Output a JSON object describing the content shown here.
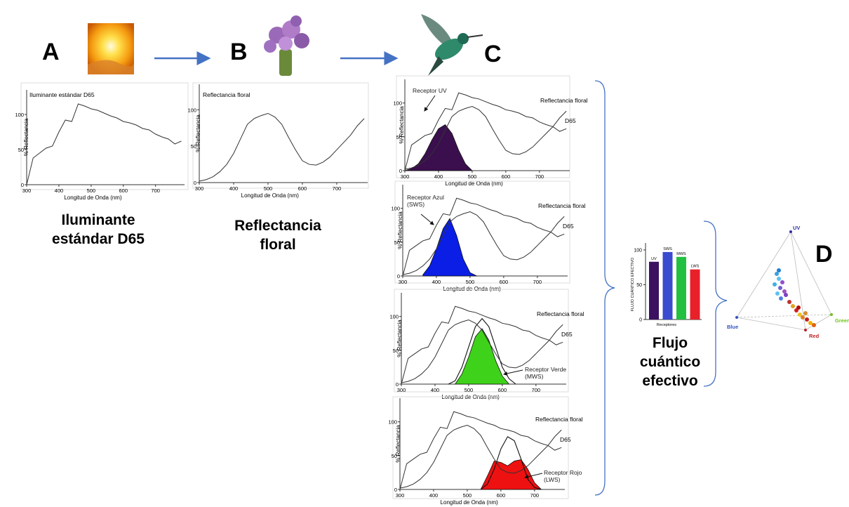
{
  "panel_letters": [
    "A",
    "B",
    "C",
    "D"
  ],
  "spectra": {
    "x": [
      300,
      320,
      340,
      360,
      380,
      400,
      420,
      440,
      460,
      480,
      500,
      520,
      540,
      560,
      580,
      600,
      620,
      640,
      660,
      680,
      700,
      720,
      740,
      760,
      780
    ],
    "d65": [
      0,
      38,
      45,
      52,
      55,
      75,
      92,
      90,
      115,
      112,
      108,
      106,
      102,
      98,
      95,
      90,
      88,
      85,
      80,
      78,
      72,
      68,
      65,
      58,
      62
    ],
    "floral": [
      2,
      4,
      8,
      15,
      25,
      40,
      60,
      80,
      88,
      92,
      95,
      90,
      80,
      62,
      45,
      30,
      25,
      24,
      28,
      35,
      45,
      55,
      65,
      78,
      88
    ],
    "xlim": [
      300,
      790
    ],
    "ylim": [
      0,
      135
    ],
    "xticks": [
      300,
      400,
      500,
      600,
      700
    ],
    "yticks": [
      0,
      50,
      100
    ],
    "x_label": "Longitud de Onda (nm)",
    "y_label": "% Reflectancia"
  },
  "illuminant_chart": {
    "title": "Iluminante estándar D65",
    "caption": "Iluminante estándar D65"
  },
  "floral_chart": {
    "title": "Reflectancia floral",
    "caption": "Reflectancia floral"
  },
  "floral_label": "Reflectancia floral",
  "d65_label": "D65",
  "receptor_charts": [
    {
      "receptor_label": "Receptor UV",
      "color": "#3b0f4e",
      "sensitivity": [
        0,
        3,
        10,
        25,
        45,
        62,
        68,
        55,
        30,
        10,
        0,
        null,
        null,
        null,
        null,
        null,
        null,
        null,
        null,
        null,
        null,
        null,
        null,
        null,
        null
      ]
    },
    {
      "receptor_label": "Receptor Azul (SWS)",
      "color": "#0a1ee6",
      "sensitivity": [
        null,
        null,
        null,
        2,
        15,
        40,
        70,
        85,
        60,
        25,
        5,
        0,
        null,
        null,
        null,
        null,
        null,
        null,
        null,
        null,
        null,
        null,
        null,
        null,
        null
      ]
    },
    {
      "receptor_label": "Receptor Verde (MWS)",
      "color": "#3fd21a",
      "sensitivity": [
        null,
        null,
        null,
        null,
        null,
        null,
        null,
        0,
        5,
        25,
        55,
        85,
        97,
        85,
        55,
        25,
        8,
        0,
        null,
        null,
        null,
        null,
        null,
        null,
        null
      ],
      "filled": [
        null,
        null,
        null,
        null,
        null,
        null,
        null,
        null,
        0,
        15,
        40,
        70,
        82,
        65,
        35,
        12,
        0,
        null,
        null,
        null,
        null,
        null,
        null,
        null,
        null
      ]
    },
    {
      "receptor_label": "Receptor Rojo (LWS)",
      "color": "#ee1111",
      "sensitivity": [
        null,
        null,
        null,
        null,
        null,
        null,
        null,
        null,
        null,
        null,
        null,
        null,
        0,
        8,
        30,
        60,
        78,
        72,
        45,
        15,
        3,
        0,
        null,
        null,
        null
      ],
      "filled": [
        null,
        null,
        null,
        null,
        null,
        null,
        null,
        null,
        null,
        null,
        null,
        null,
        0,
        20,
        42,
        40,
        35,
        42,
        44,
        30,
        10,
        0,
        null,
        null,
        null
      ]
    }
  ],
  "bar_chart": {
    "categories": [
      "UV",
      "SWS",
      "MWS",
      "LWS"
    ],
    "values": [
      83,
      97,
      90,
      72
    ],
    "colors": [
      "#3b1060",
      "#3a4bd0",
      "#22c040",
      "#e8202a"
    ],
    "ylim": [
      0,
      110
    ],
    "yticks": [
      0,
      50,
      100
    ],
    "y_label": "FLUJO CUÁNTICO EFECTIVO",
    "x_label": "Receptores",
    "caption": "Flujo cuántico efectivo"
  },
  "tetrahedron": {
    "vertices": [
      "UV",
      "Blue",
      "Green",
      "Red"
    ]
  }
}
